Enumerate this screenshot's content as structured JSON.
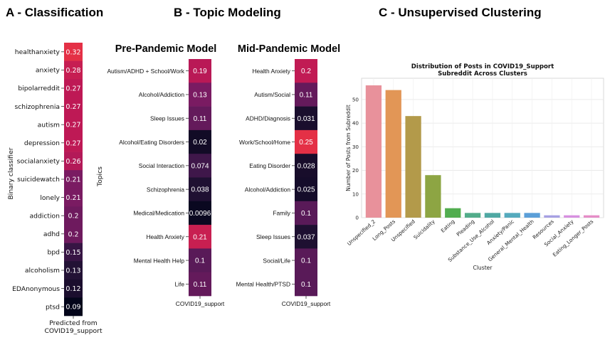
{
  "panels": {
    "a_title": "A - Classification",
    "b_title": "B - Topic Modeling",
    "c_title": "C - Unsupervised Clustering"
  },
  "chart_data": [
    {
      "type": "heatmap",
      "panel": "A",
      "ylabel": "Binary classifier",
      "xlabel": "Predicted from\nCOVID19_support",
      "rows": [
        "healthanxiety",
        "anxiety",
        "bipolarreddit",
        "schizophrenia",
        "autism",
        "depression",
        "socialanxiety",
        "suicidewatch",
        "lonely",
        "addiction",
        "adhd",
        "bpd",
        "alcoholism",
        "EDAnonymous",
        "ptsd"
      ],
      "values": [
        0.32,
        0.28,
        0.27,
        0.27,
        0.27,
        0.27,
        0.26,
        0.21,
        0.21,
        0.2,
        0.2,
        0.15,
        0.13,
        0.12,
        0.09
      ],
      "labels": [
        "0.32",
        "0.28",
        "0.27",
        "0.27",
        "0.27",
        "0.27",
        "0.26",
        "0.21",
        "0.21",
        "0.2",
        "0.2",
        "0.15",
        "0.13",
        "0.12",
        "0.09"
      ]
    },
    {
      "type": "heatmap",
      "panel": "B",
      "title": "Pre-Pandemic Model",
      "ylabel": "Topics",
      "xlabel": "COVID19_support",
      "rows": [
        "Autism/ADHD + School/Work",
        "Alcohol/Addiction",
        "Sleep Issues",
        "Alcohol/Eating Disorders",
        "Social Interaction",
        "Schizophrenia",
        "Medical/Medication",
        "Health Anxiety",
        "Mental Health Help",
        "Life"
      ],
      "values": [
        0.19,
        0.13,
        0.11,
        0.02,
        0.074,
        0.038,
        0.0096,
        0.21,
        0.1,
        0.11
      ],
      "labels": [
        "0.19",
        "0.13",
        "0.11",
        "0.02",
        "0.074",
        "0.038",
        "0.0096",
        "0.21",
        "0.1",
        "0.11"
      ]
    },
    {
      "type": "heatmap",
      "panel": "B",
      "title": "Mid-Pandemic Model",
      "xlabel": "COVID19_support",
      "rows": [
        "Health Anxiety",
        "Autism/Social",
        "ADHD/Diagnosis",
        "Work/School/Home",
        "Eating Disorder",
        "Alcohol/Addiction",
        "Family",
        "Sleep Issues",
        "Social/Life",
        "Mental Health/PTSD"
      ],
      "values": [
        0.2,
        0.11,
        0.031,
        0.25,
        0.028,
        0.025,
        0.1,
        0.037,
        0.1,
        0.1
      ],
      "labels": [
        "0.2",
        "0.11",
        "0.031",
        "0.25",
        "0.028",
        "0.025",
        "0.1",
        "0.037",
        "0.1",
        "0.1"
      ]
    },
    {
      "type": "bar",
      "panel": "C",
      "title": "Distribution of Posts in COVID19_Support\nSubreddit Across Clusters",
      "xlabel": "Cluster",
      "ylabel": "Number of Posts from Subreddit",
      "categories": [
        "Unspecified_2",
        "Long_Posts",
        "Unspecified",
        "Suicidality",
        "Eating",
        "Pleading",
        "Substance_Use_Alcohol",
        "Anxiety/Panic",
        "General_Mental_Health",
        "Resources",
        "Social_Anxiety",
        "Eating_Longer_Posts"
      ],
      "values": [
        56,
        54,
        43,
        18,
        4,
        2,
        2,
        2,
        2,
        1,
        1,
        1
      ],
      "colors": [
        "#e8919b",
        "#e29656",
        "#b39a4a",
        "#8da543",
        "#52ad4f",
        "#52ac8a",
        "#4fa8a3",
        "#55aabd",
        "#5b9fd8",
        "#a6a0e3",
        "#d790e0",
        "#e58dc7"
      ],
      "ylim": [
        0,
        59
      ],
      "yticks": [
        0,
        10,
        20,
        30,
        40,
        50
      ],
      "grid": true
    }
  ]
}
